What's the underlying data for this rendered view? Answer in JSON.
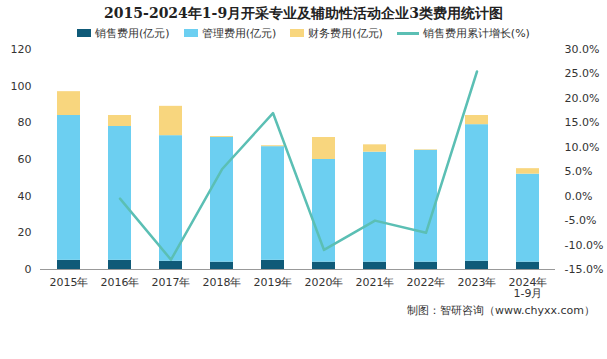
{
  "chart_data": {
    "type": "bar",
    "stacked": true,
    "title": "2015-2024年1-9月开采专业及辅助性活动企业3类费用统计图",
    "source": "制图：智研咨询（www.chyxx.com）",
    "categories": [
      "2015年",
      "2016年",
      "2017年",
      "2018年",
      "2019年",
      "2020年",
      "2021年",
      "2022年",
      "2023年",
      "2024年\n1-9月"
    ],
    "series": [
      {
        "name": "销售费用(亿元)",
        "type": "bar",
        "color": "#0f5a78",
        "values": [
          5,
          5,
          4.5,
          4,
          5,
          4,
          4,
          4,
          4.5,
          4
        ]
      },
      {
        "name": "管理费用(亿元)",
        "type": "bar",
        "color": "#6ccff1",
        "values": [
          79,
          73,
          68.5,
          68,
          62,
          56,
          60,
          61,
          74.5,
          48
        ]
      },
      {
        "name": "财务费用(亿元)",
        "type": "bar",
        "color": "#f8d67e",
        "values": [
          13,
          6,
          16,
          0.5,
          0.5,
          12,
          4,
          0.3,
          5,
          3
        ]
      },
      {
        "name": "销售费用累计增长(%)",
        "type": "line",
        "axis": "y2",
        "color": "#5bbfb4",
        "values": [
          null,
          -0.5,
          -13,
          5.5,
          17,
          -11,
          -5,
          -7.5,
          25.5,
          null
        ]
      }
    ],
    "ylim": [
      0,
      120
    ],
    "yticks": [
      0,
      20,
      40,
      60,
      80,
      100,
      120
    ],
    "y2lim": [
      -15,
      30
    ],
    "y2ticks": [
      {
        "value": -15,
        "label": "-15.0%"
      },
      {
        "value": -10,
        "label": "-10.0%"
      },
      {
        "value": -5,
        "label": "-5.0%"
      },
      {
        "value": 0,
        "label": "0.0%"
      },
      {
        "value": 5,
        "label": "5.0%"
      },
      {
        "value": 10,
        "label": "10.0%"
      },
      {
        "value": 15,
        "label": "15.0%"
      },
      {
        "value": 20,
        "label": "20.0%"
      },
      {
        "value": 25,
        "label": "25.0%"
      },
      {
        "value": 30,
        "label": "30.0%"
      }
    ],
    "grid": false,
    "legend": "top"
  }
}
